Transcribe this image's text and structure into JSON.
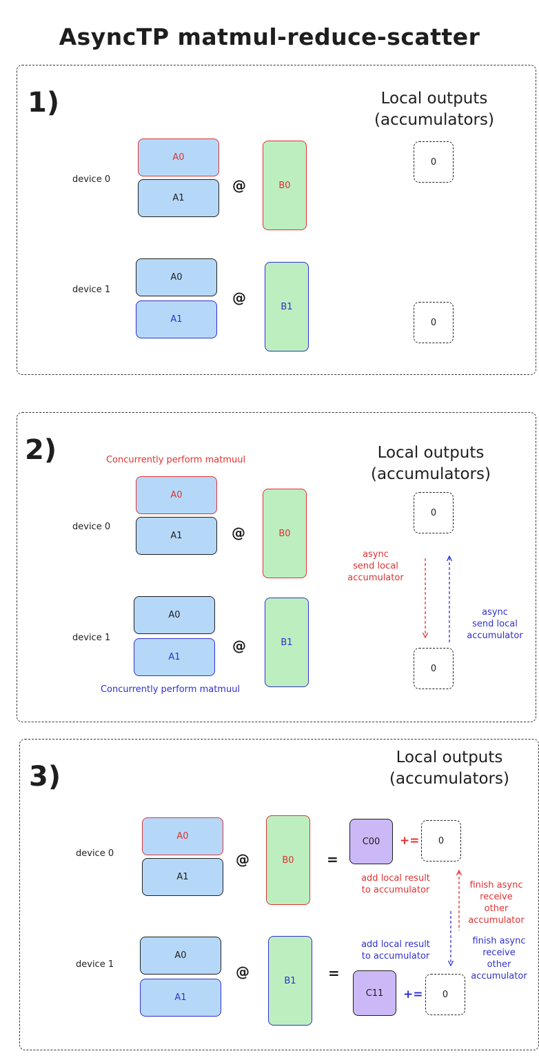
{
  "title": "AsyncTP matmul-reduce-scatter",
  "colors": {
    "red": "#e03131",
    "indigo": "#2f2fce",
    "blue_fill": "#b6d8f8",
    "green_fill": "#bdeec0",
    "purple_fill": "#cab9f6"
  },
  "panel1": {
    "step": "1)",
    "header_line1": "Local outputs",
    "header_line2": "(accumulators)",
    "device0": {
      "label": "device 0",
      "a_top": "A0",
      "a_bottom": "A1",
      "op": "@",
      "b": "B0",
      "acc": "0"
    },
    "device1": {
      "label": "device 1",
      "a_top": "A0",
      "a_bottom": "A1",
      "op": "@",
      "b": "B1",
      "acc": "0"
    }
  },
  "panel2": {
    "step": "2)",
    "header_line1": "Local outputs",
    "header_line2": "(accumulators)",
    "note_top": "Concurrently perform matmuul",
    "note_bottom": "Concurrently perform matmuul",
    "device0": {
      "label": "device 0",
      "a_top": "A0",
      "a_bottom": "A1",
      "op": "@",
      "b": "B0",
      "acc": "0"
    },
    "device1": {
      "label": "device 1",
      "a_top": "A0",
      "a_bottom": "A1",
      "op": "@",
      "b": "B1",
      "acc": "0"
    },
    "send_left": [
      "async",
      "send local",
      "accumulator"
    ],
    "send_right": [
      "async",
      "send local",
      "accumulator"
    ]
  },
  "panel3": {
    "step": "3)",
    "header_line1": "Local outputs",
    "header_line2": "(accumulators)",
    "device0": {
      "label": "device 0",
      "a_top": "A0",
      "a_bottom": "A1",
      "op": "@",
      "b": "B0",
      "eq": "=",
      "c": "C00",
      "plus_eq": "+=",
      "acc": "0"
    },
    "device1": {
      "label": "device 1",
      "a_top": "A0",
      "a_bottom": "A1",
      "op": "@",
      "b": "B1",
      "eq": "=",
      "c": "C11",
      "plus_eq": "+=",
      "acc": "0"
    },
    "add_local_0": [
      "add local result",
      "to accumulator"
    ],
    "add_local_1": [
      "add local result",
      "to accumulator"
    ],
    "finish_0": [
      "finish async",
      "receive",
      "other",
      "accumulator"
    ],
    "finish_1": [
      "finish async",
      "receive",
      "other",
      "accumulator"
    ]
  }
}
